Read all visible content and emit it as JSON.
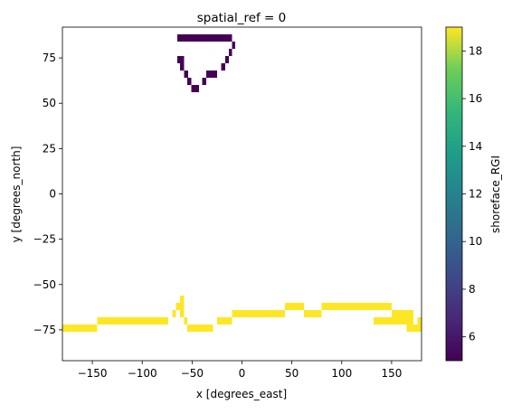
{
  "chart_data": {
    "type": "heatmap",
    "title": "spatial_ref = 0",
    "xlabel": "x [degrees_east]",
    "ylabel": "y [degrees_north]",
    "xlim": [
      -180,
      180
    ],
    "ylim": [
      -92,
      92
    ],
    "xticks": [
      -150,
      -100,
      -50,
      0,
      50,
      100,
      150
    ],
    "yticks": [
      -75,
      -50,
      -25,
      0,
      25,
      50,
      75
    ],
    "xtick_labels": [
      "−150",
      "−100",
      "−50",
      "0",
      "50",
      "100",
      "150"
    ],
    "ytick_labels": [
      "−75",
      "−50",
      "−25",
      "0",
      "25",
      "50",
      "75"
    ],
    "cell_size_deg": [
      7.5,
      4
    ],
    "colorbar": {
      "label": "shoreface_RGI",
      "range": [
        5,
        19
      ],
      "ticks": [
        6,
        8,
        10,
        12,
        14,
        16,
        18
      ],
      "tick_labels": [
        "6",
        "8",
        "10",
        "12",
        "14",
        "16",
        "18"
      ],
      "colormap": "viridis"
    },
    "cells": [
      {
        "x0": -65,
        "x1": -10,
        "y0": 84,
        "y1": 88,
        "value": 5
      },
      {
        "x0": -10,
        "x1": -7,
        "y0": 80,
        "y1": 84,
        "value": 5
      },
      {
        "x0": -13,
        "x1": -10,
        "y0": 76,
        "y1": 80,
        "value": 5
      },
      {
        "x0": -65,
        "x1": -58,
        "y0": 72,
        "y1": 76,
        "value": 5
      },
      {
        "x0": -17,
        "x1": -13,
        "y0": 72,
        "y1": 76,
        "value": 5
      },
      {
        "x0": -62,
        "x1": -58,
        "y0": 68,
        "y1": 72,
        "value": 5
      },
      {
        "x0": -21,
        "x1": -17,
        "y0": 68,
        "y1": 72,
        "value": 5
      },
      {
        "x0": -58,
        "x1": -54,
        "y0": 64,
        "y1": 68,
        "value": 5
      },
      {
        "x0": -36,
        "x1": -25,
        "y0": 64,
        "y1": 68,
        "value": 5
      },
      {
        "x0": -55,
        "x1": -51,
        "y0": 60,
        "y1": 64,
        "value": 5
      },
      {
        "x0": -40,
        "x1": -36,
        "y0": 60,
        "y1": 64,
        "value": 5
      },
      {
        "x0": -51,
        "x1": -43,
        "y0": 56,
        "y1": 60,
        "value": 5
      },
      {
        "x0": -62,
        "x1": -58,
        "y0": -60,
        "y1": -56,
        "value": 19
      },
      {
        "x0": -66,
        "x1": -58,
        "y0": -64,
        "y1": -60,
        "value": 19
      },
      {
        "x0": 43,
        "x1": 62,
        "y0": -64,
        "y1": -60,
        "value": 19
      },
      {
        "x0": 80,
        "x1": 150,
        "y0": -64,
        "y1": -60,
        "value": 19
      },
      {
        "x0": -70,
        "x1": -66,
        "y0": -68,
        "y1": -64,
        "value": 19
      },
      {
        "x0": -62,
        "x1": -58,
        "y0": -68,
        "y1": -64,
        "value": 19
      },
      {
        "x0": -10,
        "x1": 43,
        "y0": -68,
        "y1": -64,
        "value": 19
      },
      {
        "x0": 62,
        "x1": 80,
        "y0": -68,
        "y1": -64,
        "value": 19
      },
      {
        "x0": 150,
        "x1": 172,
        "y0": -68,
        "y1": -64,
        "value": 19
      },
      {
        "x0": -145,
        "x1": -74,
        "y0": -72,
        "y1": -68,
        "value": 19
      },
      {
        "x0": -58,
        "x1": -55,
        "y0": -72,
        "y1": -68,
        "value": 19
      },
      {
        "x0": -25,
        "x1": -10,
        "y0": -72,
        "y1": -68,
        "value": 19
      },
      {
        "x0": 132,
        "x1": 172,
        "y0": -72,
        "y1": -68,
        "value": 19
      },
      {
        "x0": 176,
        "x1": 180,
        "y0": -72,
        "y1": -68,
        "value": 19
      },
      {
        "x0": -180,
        "x1": -145,
        "y0": -76,
        "y1": -72,
        "value": 19
      },
      {
        "x0": -55,
        "x1": -29,
        "y0": -76,
        "y1": -72,
        "value": 19
      },
      {
        "x0": 165,
        "x1": 180,
        "y0": -76,
        "y1": -72,
        "value": 19
      }
    ]
  }
}
